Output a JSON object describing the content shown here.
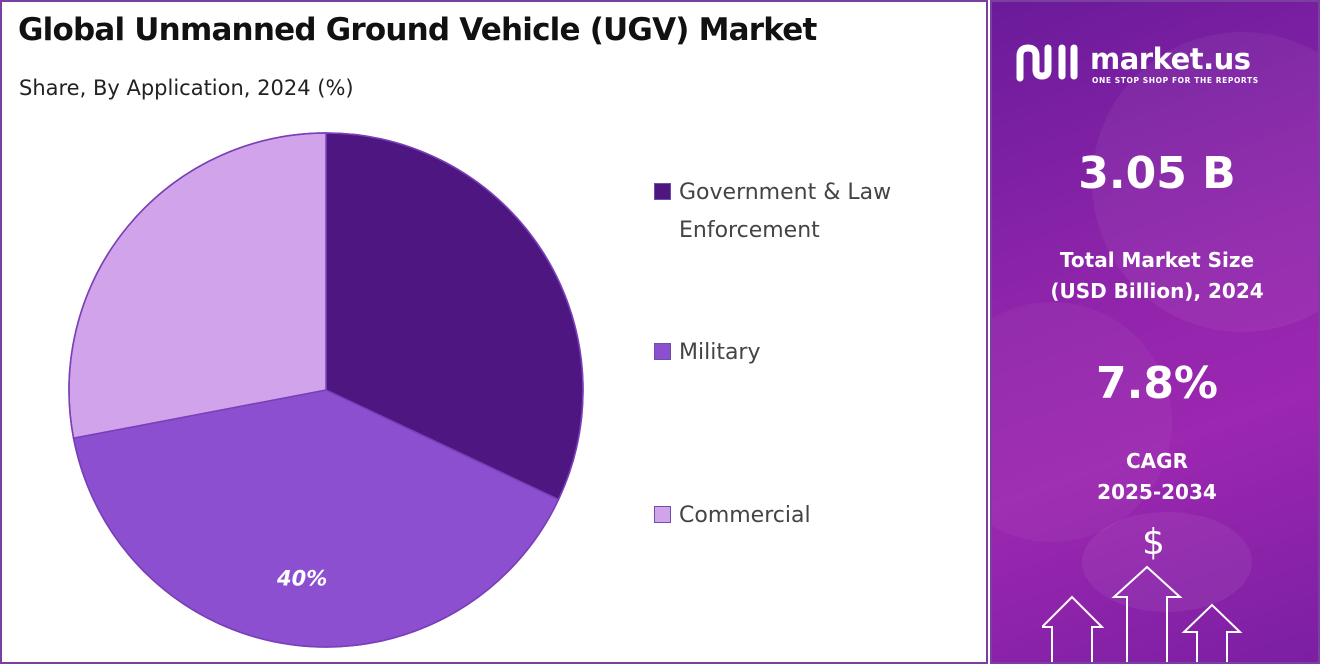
{
  "title": "Global Unmanned Ground Vehicle (UGV) Market",
  "subtitle": "Share, By Application, 2024 (%)",
  "chart_data": {
    "type": "pie",
    "categories": [
      "Government & Law Enforcement",
      "Military",
      "Commercial"
    ],
    "values": [
      32,
      40,
      28
    ],
    "data_labels": [
      "",
      "40%",
      ""
    ],
    "colors": [
      "#4e1680",
      "#8b4fd0",
      "#d1a3eb"
    ],
    "legend_position": "right"
  },
  "brand": {
    "name": "market.us",
    "tagline": "ONE STOP SHOP FOR THE REPORTS",
    "logo_icon": "market-us-logo-icon"
  },
  "stats": {
    "market_size_value": "3.05 B",
    "market_size_label_line1": "Total Market Size",
    "market_size_label_line2": "(USD Billion), 2024",
    "cagr_value": "7.8%",
    "cagr_label_line1": "CAGR",
    "cagr_label_line2": "2025-2034"
  },
  "decor": {
    "dollar_symbol": "$",
    "arrow_icon": "growth-arrows-icon"
  }
}
